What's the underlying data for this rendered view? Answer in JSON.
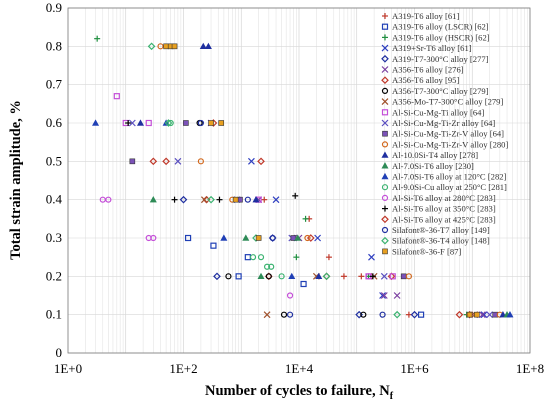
{
  "chart_data": {
    "type": "scatter",
    "title": "",
    "xlabel": "Number of cycles to failure, N",
    "xlabel_subscript": "f",
    "ylabel": "Total strain amplitude, %",
    "x_scale": "log",
    "xlim": [
      1,
      100000000
    ],
    "ylim": [
      0,
      0.9
    ],
    "x_ticks": [
      "1E+0",
      "1E+2",
      "1E+4",
      "1E+6",
      "1E+8"
    ],
    "y_ticks": [
      "0",
      "0.1",
      "0.2",
      "0.3",
      "0.4",
      "0.5",
      "0.6",
      "0.7",
      "0.8",
      "0.9"
    ],
    "grid": true,
    "legend_position": "right",
    "series": [
      {
        "name": "A319-T6 alloy [61]",
        "marker": "plus",
        "color": "#c0392b",
        "points": [
          [
            33000.0,
            0.25
          ],
          [
            60000.0,
            0.2
          ],
          [
            120000.0,
            0.2
          ],
          [
            15000.0,
            0.35
          ],
          [
            800000.0,
            0.1
          ],
          [
            2500.0,
            0.4
          ]
        ]
      },
      {
        "name": "A319-T6 alloy (LSCR) [62]",
        "marker": "square-open",
        "color": "#1f3fb5",
        "points": [
          [
            120,
            0.3
          ],
          [
            330,
            0.28
          ],
          [
            1300,
            0.25
          ],
          [
            900,
            0.2
          ],
          [
            12000.0,
            0.18
          ],
          [
            1300000.0,
            0.1
          ]
        ]
      },
      {
        "name": "A319-T6 alloy (HSCR) [62]",
        "marker": "plus",
        "color": "#1f8f3f",
        "points": [
          [
            3.2,
            0.82
          ],
          [
            9000.0,
            0.25
          ],
          [
            13000.0,
            0.35
          ],
          [
            160000.0,
            0.2
          ],
          [
            8000000.0,
            0.1
          ]
        ]
      },
      {
        "name": "A319+Sr-T6 alloy [61]",
        "marker": "x",
        "color": "#2f3fc0",
        "points": [
          [
            1500.0,
            0.5
          ],
          [
            4000.0,
            0.4
          ],
          [
            21000.0,
            0.3
          ],
          [
            180000.0,
            0.25
          ],
          [
            280000.0,
            0.15
          ],
          [
            16000000.0,
            0.1
          ]
        ]
      },
      {
        "name": "A319-T7-300°C alloy [277]",
        "marker": "diamond-open",
        "color": "#1f2fa0",
        "points": [
          [
            100,
            0.4
          ],
          [
            380,
            0.2
          ],
          [
            3500.0,
            0.3
          ],
          [
            110000.0,
            0.1
          ],
          [
            1000000.0,
            0.1
          ]
        ]
      },
      {
        "name": "A356-T6 alloy [276]",
        "marker": "x",
        "color": "#7b3fa0",
        "points": [
          [
            300,
            0.6
          ],
          [
            2000.0,
            0.4
          ],
          [
            10000.0,
            0.3
          ],
          [
            300000.0,
            0.15
          ],
          [
            500000.0,
            0.15
          ],
          [
            15000000.0,
            0.1
          ]
        ]
      },
      {
        "name": "A356-T6 alloy [95]",
        "marker": "diamond-open",
        "color": "#c0392b",
        "points": [
          [
            50,
            0.5
          ],
          [
            250,
            0.4
          ],
          [
            3000.0,
            0.2
          ],
          [
            16000.0,
            0.3
          ],
          [
            400000.0,
            0.2
          ],
          [
            6000000.0,
            0.1
          ]
        ]
      },
      {
        "name": "A356-T7-300°C alloy [279]",
        "marker": "circle-open",
        "color": "#000000",
        "points": [
          [
            190,
            0.6
          ],
          [
            600,
            0.2
          ],
          [
            3000.0,
            0.2
          ],
          [
            5500.0,
            0.1
          ],
          [
            130000.0,
            0.1
          ]
        ]
      },
      {
        "name": "A356-Mo-T7-300°C alloy [279]",
        "marker": "x",
        "color": "#a0522d",
        "points": [
          [
            230,
            0.4
          ],
          [
            2800.0,
            0.1
          ],
          [
            20000.0,
            0.2
          ],
          [
            200000.0,
            0.2
          ],
          [
            11000000.0,
            0.1
          ]
        ]
      },
      {
        "name": "Al-Si-Cu-Mg-Ti alloy [64]",
        "marker": "square-open",
        "color": "#c44fd8",
        "points": [
          [
            7,
            0.67
          ],
          [
            10,
            0.6
          ],
          [
            25,
            0.6
          ],
          [
            2000.0,
            0.4
          ],
          [
            160000.0,
            0.2
          ],
          [
            420000.0,
            0.2
          ]
        ]
      },
      {
        "name": "Al-Si-Cu-Mg-Ti-Zr alloy [64]",
        "marker": "x",
        "color": "#5a4fc0",
        "points": [
          [
            13,
            0.6
          ],
          [
            80,
            0.5
          ],
          [
            850,
            0.4
          ],
          [
            7500.0,
            0.3
          ],
          [
            300000.0,
            0.2
          ],
          [
            20000000.0,
            0.1
          ]
        ]
      },
      {
        "name": "Al-Si-Cu-Mg-Ti-Zr-V alloy [64]",
        "marker": "square-filled",
        "color": "#7b52b8",
        "points": [
          [
            13,
            0.5
          ],
          [
            110,
            0.6
          ],
          [
            950,
            0.4
          ],
          [
            8000.0,
            0.3
          ],
          [
            650000.0,
            0.2
          ],
          [
            25000000.0,
            0.1
          ]
        ]
      },
      {
        "name": "Al-Si-Cu-Mg-Ti-Zr-V alloy [280]",
        "marker": "circle-open",
        "color": "#d2691e",
        "points": [
          [
            40,
            0.8
          ],
          [
            200,
            0.5
          ],
          [
            700,
            0.4
          ],
          [
            14000.0,
            0.3
          ],
          [
            800000.0,
            0.2
          ],
          [
            30000000.0,
            0.1
          ]
        ]
      },
      {
        "name": "Al-10.0Si-T4 alloy [278]",
        "marker": "triangle-filled",
        "color": "#1f2fa0",
        "points": [
          [
            18,
            0.6
          ],
          [
            220,
            0.8
          ],
          [
            270,
            0.8
          ],
          [
            1800.0,
            0.4
          ],
          [
            22000.0,
            0.2
          ],
          [
            34000000.0,
            0.1
          ]
        ]
      },
      {
        "name": "Al-7.0Si-T6 alloy [230]",
        "marker": "triangle-filled",
        "color": "#2e8b57",
        "points": [
          [
            30,
            0.4
          ],
          [
            1200,
            0.3
          ],
          [
            2200.0,
            0.2
          ],
          [
            9500.0,
            0.3
          ],
          [
            40000000.0,
            0.1
          ]
        ]
      },
      {
        "name": "Al-7.0Si-T6 alloy at 120°C [282]",
        "marker": "triangle-filled",
        "color": "#1f3fb5",
        "points": [
          [
            3,
            0.6
          ],
          [
            50,
            0.6
          ],
          [
            500,
            0.3
          ],
          [
            7500.0,
            0.2
          ],
          [
            45000000.0,
            0.1
          ]
        ]
      },
      {
        "name": "Al-9.0Si-Cu alloy at 250°C [281]",
        "marker": "circle-open",
        "color": "#3cb371",
        "points": [
          [
            60,
            0.6
          ],
          [
            1600,
            0.25
          ],
          [
            2200.0,
            0.25
          ],
          [
            2800.0,
            0.225
          ],
          [
            3300.0,
            0.225
          ],
          [
            5000.0,
            0.2
          ]
        ]
      },
      {
        "name": "Al-Si-T6 alloy at 280°C [283]",
        "marker": "circle-open",
        "color": "#c44fd8",
        "points": [
          [
            4,
            0.4
          ],
          [
            5,
            0.4
          ],
          [
            25,
            0.3
          ],
          [
            30,
            0.3
          ],
          [
            7000.0,
            0.15
          ],
          [
            160000.0,
            0.2
          ]
        ]
      },
      {
        "name": "Al-Si-T6 alloy at 350°C [283]",
        "marker": "plus",
        "color": "#000000",
        "points": [
          [
            11,
            0.6
          ],
          [
            70,
            0.4
          ],
          [
            420,
            0.4
          ],
          [
            8600.0,
            0.41
          ],
          [
            190000.0,
            0.2
          ]
        ]
      },
      {
        "name": "Al-Si-T6 alloy at 425°C [283]",
        "marker": "diamond-open",
        "color": "#c0392b",
        "points": [
          [
            30,
            0.5
          ],
          [
            330,
            0.6
          ],
          [
            2200.0,
            0.5
          ],
          [
            30000.0,
            0.2
          ],
          [
            9000000.0,
            0.1
          ]
        ]
      },
      {
        "name": "Silafont®-36-T7 alloy [149]",
        "marker": "circle-open",
        "color": "#1f2fa0",
        "points": [
          [
            200,
            0.6
          ],
          [
            1300,
            0.4
          ],
          [
            3500.0,
            0.3
          ],
          [
            7000.0,
            0.1
          ],
          [
            280000.0,
            0.1
          ]
        ]
      },
      {
        "name": "Silafont®-36-T4 alloy [148]",
        "marker": "diamond-open",
        "color": "#3cb371",
        "points": [
          [
            28,
            0.8
          ],
          [
            55,
            0.6
          ],
          [
            300,
            0.4
          ],
          [
            1800.0,
            0.3
          ],
          [
            30000.0,
            0.2
          ],
          [
            500000.0,
            0.1
          ]
        ]
      },
      {
        "name": "Silafont®-36-F [87]",
        "marker": "square-filled",
        "color": "#e8a020",
        "points": [
          [
            50,
            0.8
          ],
          [
            60,
            0.8
          ],
          [
            70,
            0.8
          ],
          [
            300,
            0.6
          ],
          [
            450,
            0.6
          ],
          [
            800,
            0.4
          ],
          [
            2000.0,
            0.3
          ],
          [
            9000000.0,
            0.1
          ],
          [
            12000000.0,
            0.1
          ]
        ]
      }
    ]
  }
}
